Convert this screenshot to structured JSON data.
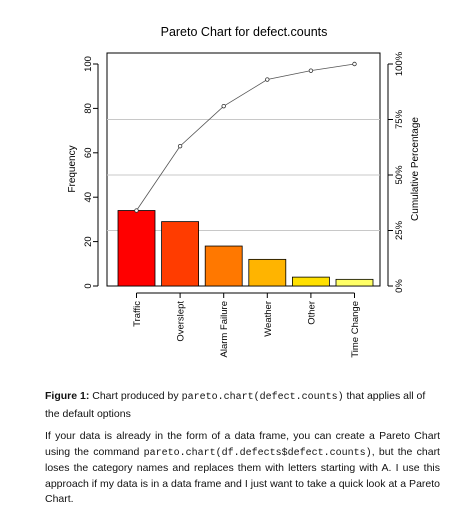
{
  "chart_data": {
    "type": "bar",
    "title": "Pareto Chart for defect.counts",
    "ylabel": "Frequency",
    "y2label": "Cumulative Percentage",
    "categories": [
      "Traffic",
      "Overslept",
      "Alarm Failure",
      "Weather",
      "Other",
      "Time Change"
    ],
    "values": [
      34,
      29,
      18,
      12,
      4,
      3
    ],
    "cumulative_percent": [
      34,
      63,
      81,
      93,
      97,
      100
    ],
    "ylim": [
      0,
      100
    ],
    "yticks": [
      "0",
      "20",
      "40",
      "60",
      "80",
      "100"
    ],
    "y2ticks": [
      "0%",
      "25%",
      "50%",
      "75%",
      "100%"
    ],
    "bar_colors": [
      "#ff0000",
      "#ff3c00",
      "#ff7800",
      "#ffb400",
      "#ffe000",
      "#ffff66"
    ],
    "gridlines_right_axis": true
  },
  "caption": {
    "label": "Figure 1:",
    "text_before": " Chart produced by ",
    "code": "pareto.chart(defect.counts)",
    "text_after": " that applies all of the default options"
  },
  "body": {
    "part1": "If your data is already in the form of a data frame, you can create a Pareto Chart using the command ",
    "code": "pareto.chart(df.defects$defect.counts)",
    "part2": ", but the chart loses the category names and replaces them with letters starting with A. I use this approach if my data is in a data frame and I just want to take a quick look at a Pareto Chart."
  }
}
